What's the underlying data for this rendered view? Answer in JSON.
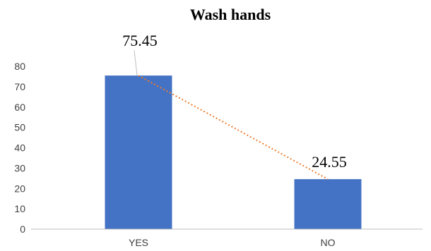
{
  "chart_data": {
    "type": "bar",
    "title": "Wash hands",
    "xlabel": "",
    "ylabel": "",
    "categories": [
      "YES",
      "NO"
    ],
    "values": [
      75.45,
      24.55
    ],
    "data_labels": [
      "75.45",
      "24.55"
    ],
    "ylim": [
      0,
      80
    ],
    "yticks": [
      0,
      10,
      20,
      30,
      40,
      50,
      60,
      70,
      80
    ],
    "grid": false,
    "legend": "none",
    "trendline": {
      "style": "dotted",
      "color": "#ED7D31"
    },
    "bar_color": "#4472C4",
    "axis_color": "#BFBFBF",
    "leader_color": "#BFBFBF"
  }
}
